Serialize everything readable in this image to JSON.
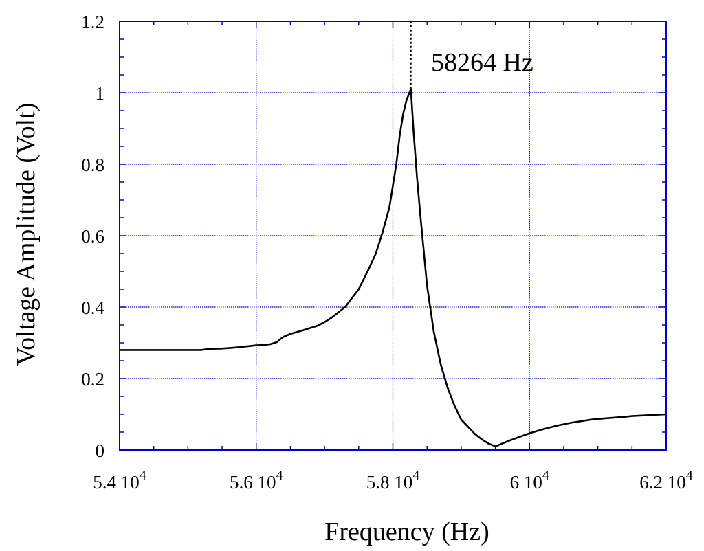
{
  "chart_data": {
    "type": "line",
    "title": "",
    "xlabel": "Frequency (Hz)",
    "ylabel": "Voltage Amplitude (Volt)",
    "xlim": [
      54000,
      62000
    ],
    "ylim": [
      0,
      1.2
    ],
    "grid": true,
    "colors": {
      "line": "#000000",
      "grid": "#0000cc",
      "frame": "#0000cc"
    },
    "x_ticks": [
      {
        "value": 54000,
        "mantissa": "5.4",
        "base": "10",
        "exp": "4"
      },
      {
        "value": 56000,
        "mantissa": "5.6",
        "base": "10",
        "exp": "4"
      },
      {
        "value": 58000,
        "mantissa": "5.8",
        "base": "10",
        "exp": "4"
      },
      {
        "value": 60000,
        "mantissa": "6",
        "base": "10",
        "exp": "4"
      },
      {
        "value": 62000,
        "mantissa": "6.2",
        "base": "10",
        "exp": "4"
      }
    ],
    "y_ticks": [
      {
        "value": 0,
        "label": "0"
      },
      {
        "value": 0.2,
        "label": "0.2"
      },
      {
        "value": 0.4,
        "label": "0.4"
      },
      {
        "value": 0.6,
        "label": "0.6"
      },
      {
        "value": 0.8,
        "label": "0.8"
      },
      {
        "value": 1.0,
        "label": "1"
      },
      {
        "value": 1.2,
        "label": "1.2"
      }
    ],
    "annotation": {
      "text": "58264 Hz",
      "x": 58264,
      "y_from": 1.01,
      "y_to": 1.2
    },
    "series": [
      {
        "x": [
          54000,
          54500,
          55000,
          55200,
          55300,
          55500,
          55700,
          55900,
          56000,
          56100,
          56200,
          56300,
          56350,
          56400,
          56500,
          56700,
          56900,
          57000,
          57100,
          57300,
          57500,
          57650,
          57750,
          57850,
          57950,
          58000,
          58050,
          58100,
          58150,
          58200,
          58264,
          58300,
          58350,
          58400,
          58500,
          58600,
          58700,
          58800,
          58900,
          59000,
          59200,
          59300,
          59400,
          59480,
          59500,
          59550,
          59600,
          59700,
          59900,
          60000,
          60200,
          60400,
          60600,
          60800,
          60900,
          61000,
          61200,
          61400,
          61500,
          61800,
          62000
        ],
        "y": [
          0.28,
          0.28,
          0.28,
          0.28,
          0.283,
          0.284,
          0.287,
          0.291,
          0.293,
          0.294,
          0.296,
          0.302,
          0.31,
          0.317,
          0.325,
          0.336,
          0.348,
          0.358,
          0.37,
          0.4,
          0.45,
          0.508,
          0.55,
          0.61,
          0.68,
          0.74,
          0.8,
          0.88,
          0.94,
          0.98,
          1.01,
          0.9,
          0.77,
          0.66,
          0.46,
          0.33,
          0.24,
          0.175,
          0.125,
          0.085,
          0.045,
          0.03,
          0.018,
          0.012,
          0.01,
          0.014,
          0.018,
          0.026,
          0.04,
          0.047,
          0.058,
          0.068,
          0.076,
          0.082,
          0.085,
          0.087,
          0.09,
          0.093,
          0.095,
          0.098,
          0.1
        ]
      }
    ]
  }
}
